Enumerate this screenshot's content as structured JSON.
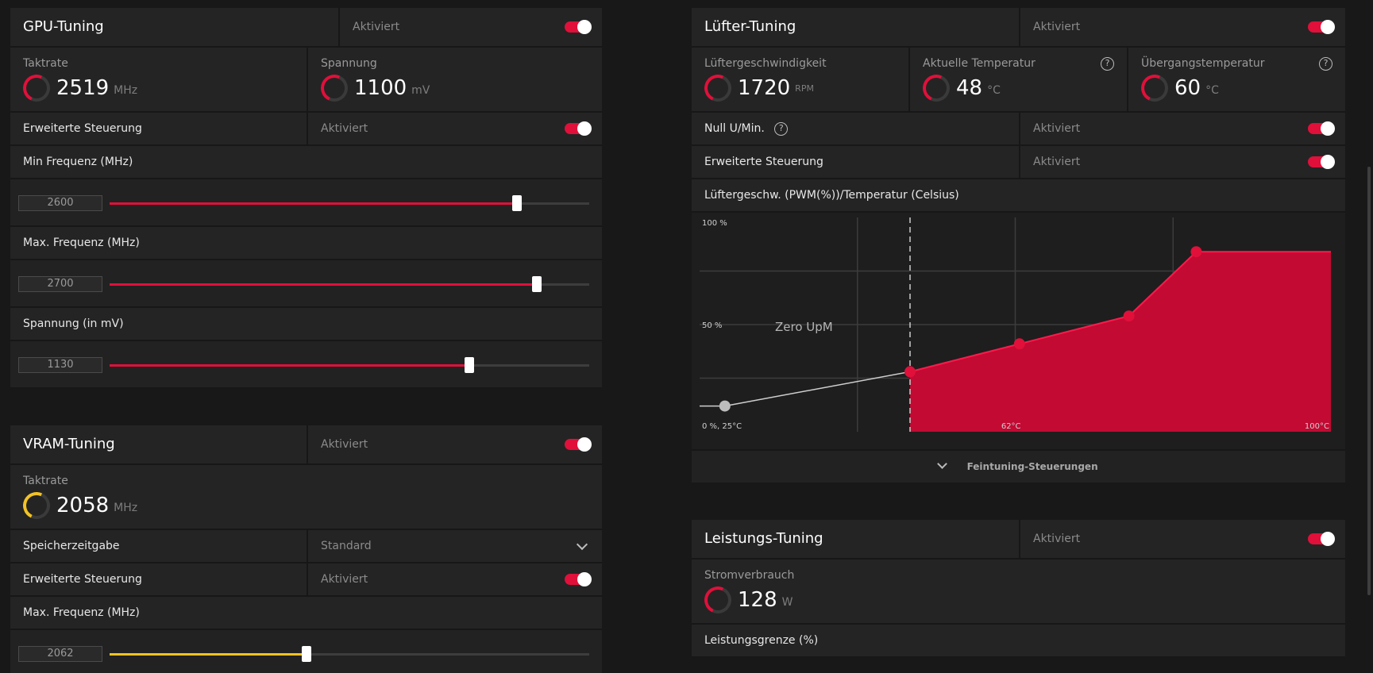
{
  "gpu": {
    "title": "GPU-Tuning",
    "state": "Aktiviert",
    "clock": {
      "label": "Taktrate",
      "value": "2519",
      "unit": "MHz"
    },
    "voltage": {
      "label": "Spannung",
      "value": "1100",
      "unit": "mV"
    },
    "advanced": {
      "label": "Erweiterte Steuerung",
      "state": "Aktiviert"
    },
    "min_freq": {
      "label": "Min Frequenz (MHz)",
      "value": "2600",
      "fraction": 0.85
    },
    "max_freq": {
      "label": "Max. Frequenz (MHz)",
      "value": "2700",
      "fraction": 0.89
    },
    "volt_ctrl": {
      "label": "Spannung (in mV)",
      "value": "1130",
      "fraction": 0.75
    }
  },
  "vram": {
    "title": "VRAM-Tuning",
    "state": "Aktiviert",
    "clock": {
      "label": "Taktrate",
      "value": "2058",
      "unit": "MHz"
    },
    "timing": {
      "label": "Speicherzeitgabe",
      "value": "Standard"
    },
    "advanced": {
      "label": "Erweiterte Steuerung",
      "state": "Aktiviert"
    },
    "max_freq": {
      "label": "Max. Frequenz (MHz)",
      "value": "2062",
      "fraction": 0.41
    }
  },
  "fan": {
    "title": "Lüfter-Tuning",
    "state": "Aktiviert",
    "speed": {
      "label": "Lüftergeschwindigkeit",
      "value": "1720",
      "unit": "RPM"
    },
    "temp": {
      "label": "Aktuelle Temperatur",
      "value": "48",
      "unit": "°C"
    },
    "junction": {
      "label": "Übergangstemperatur",
      "value": "60",
      "unit": "°C"
    },
    "zero_rpm": {
      "label": "Null U/Min.",
      "state": "Aktiviert"
    },
    "advanced": {
      "label": "Erweiterte Steuerung",
      "state": "Aktiviert"
    },
    "curve_label": "Lüftergeschw. (PWM(%))/Temperatur (Celsius)",
    "fine_tuning": "Feintuning-Steuerungen"
  },
  "power": {
    "title": "Leistungs-Tuning",
    "state": "Aktiviert",
    "usage": {
      "label": "Stromverbrauch",
      "value": "128",
      "unit": "W"
    },
    "limit_label": "Leistungsgrenze (%)"
  },
  "colors": {
    "accent": "#e0103a",
    "vram_accent": "#f3c324"
  },
  "chart_data": {
    "type": "area",
    "xlabel": "",
    "ylabel": "",
    "xlim": [
      25,
      100
    ],
    "ylim": [
      0,
      100
    ],
    "x_ticks": [
      {
        "pos": 25,
        "label": "0 %, 25°C"
      },
      {
        "pos": 62,
        "label": "62°C"
      },
      {
        "pos": 100,
        "label": "100°C"
      }
    ],
    "y_ticks": [
      {
        "pos": 100,
        "label": "100 %"
      },
      {
        "pos": 50,
        "label": "50 %"
      }
    ],
    "zero_rpm_label": "Zero UpM",
    "zero_rpm_limit": 50,
    "inactive_points": [
      {
        "x": 25,
        "y": 12
      },
      {
        "x": 28,
        "y": 12
      },
      {
        "x": 50,
        "y": 28
      }
    ],
    "points": [
      {
        "x": 50,
        "y": 28
      },
      {
        "x": 63,
        "y": 41
      },
      {
        "x": 76,
        "y": 54
      },
      {
        "x": 84,
        "y": 84
      },
      {
        "x": 100,
        "y": 84
      }
    ]
  }
}
